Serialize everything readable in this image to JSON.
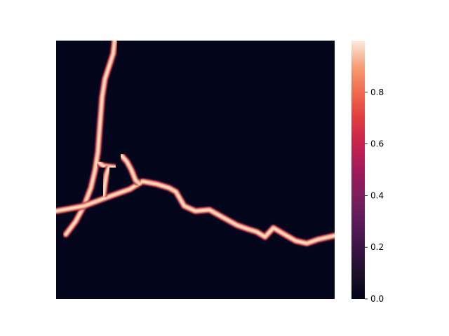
{
  "chart_data": {
    "type": "heatmap",
    "title": "",
    "xlabel": "",
    "ylabel": "",
    "colorbar": {
      "colormap": "rocket",
      "vmin": 0.0,
      "vmax": 1.0,
      "ticks": [
        0.0,
        0.2,
        0.4,
        0.6,
        0.8
      ],
      "tick_labels": [
        "0.0",
        "0.2",
        "0.4",
        "0.6",
        "0.8"
      ]
    },
    "background_value": 0.0,
    "ridge_value": 1.0,
    "x_range": [
      0,
      1
    ],
    "y_range": [
      0,
      1
    ],
    "structures": [
      {
        "name": "vertical-branch",
        "points": [
          [
            0.21,
            0.0
          ],
          [
            0.205,
            0.05
          ],
          [
            0.19,
            0.1
          ],
          [
            0.175,
            0.15
          ],
          [
            0.165,
            0.22
          ],
          [
            0.16,
            0.29
          ],
          [
            0.155,
            0.36
          ],
          [
            0.15,
            0.43
          ],
          [
            0.14,
            0.5
          ],
          [
            0.125,
            0.57
          ],
          [
            0.1,
            0.64
          ],
          [
            0.07,
            0.7
          ],
          [
            0.035,
            0.75
          ]
        ]
      },
      {
        "name": "main-ridge",
        "points": [
          [
            0.0,
            0.66
          ],
          [
            0.05,
            0.65
          ],
          [
            0.1,
            0.64
          ],
          [
            0.15,
            0.62
          ],
          [
            0.2,
            0.6
          ],
          [
            0.265,
            0.575
          ],
          [
            0.31,
            0.545
          ],
          [
            0.36,
            0.555
          ],
          [
            0.405,
            0.57
          ],
          [
            0.43,
            0.585
          ],
          [
            0.46,
            0.64
          ],
          [
            0.5,
            0.66
          ],
          [
            0.55,
            0.655
          ],
          [
            0.6,
            0.685
          ],
          [
            0.65,
            0.715
          ],
          [
            0.69,
            0.73
          ],
          [
            0.72,
            0.74
          ],
          [
            0.75,
            0.76
          ],
          [
            0.78,
            0.725
          ],
          [
            0.82,
            0.75
          ],
          [
            0.86,
            0.775
          ],
          [
            0.9,
            0.785
          ],
          [
            0.94,
            0.77
          ],
          [
            1.0,
            0.755
          ]
        ]
      },
      {
        "name": "upper-spur",
        "points": [
          [
            0.235,
            0.445
          ],
          [
            0.255,
            0.47
          ],
          [
            0.27,
            0.5
          ],
          [
            0.285,
            0.54
          ],
          [
            0.3,
            0.555
          ]
        ]
      },
      {
        "name": "side-stub",
        "points": [
          [
            0.15,
            0.47
          ],
          [
            0.17,
            0.485
          ],
          [
            0.21,
            0.49
          ]
        ]
      },
      {
        "name": "inner-branch",
        "points": [
          [
            0.19,
            0.49
          ],
          [
            0.18,
            0.52
          ],
          [
            0.175,
            0.555
          ],
          [
            0.17,
            0.6
          ]
        ]
      }
    ]
  }
}
